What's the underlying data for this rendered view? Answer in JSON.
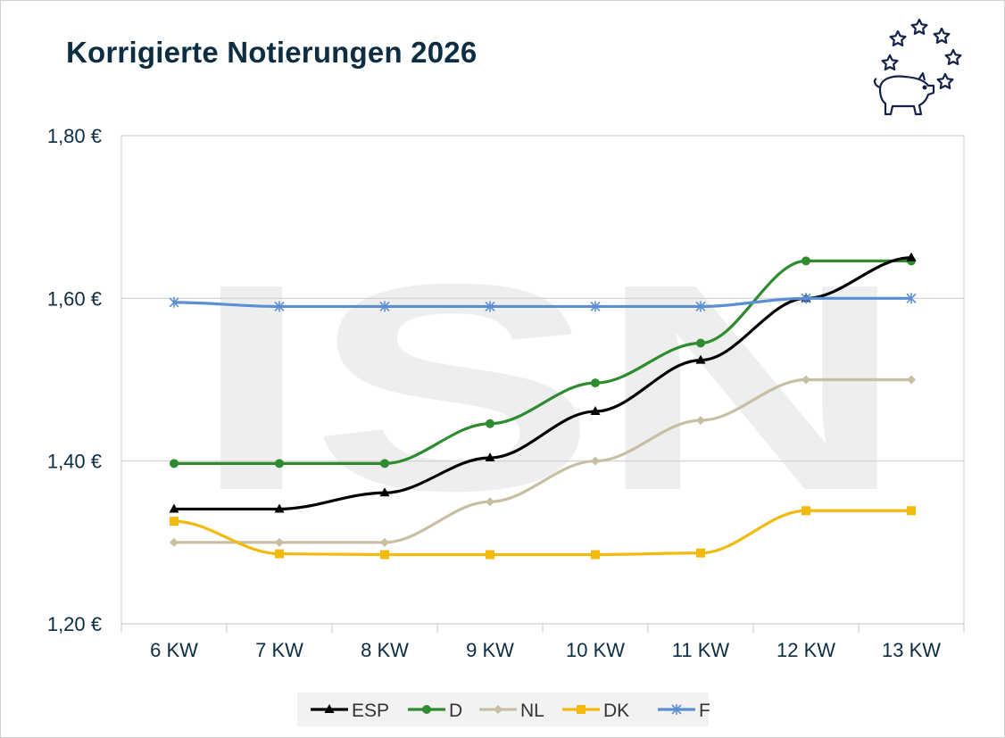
{
  "chart_data": {
    "type": "line",
    "title": "Korrigierte Notierungen 2026",
    "xlabel": "",
    "ylabel": "",
    "categories": [
      "6 KW",
      "7 KW",
      "8 KW",
      "9 KW",
      "10 KW",
      "11 KW",
      "12 KW",
      "13 KW"
    ],
    "ylim": [
      1.2,
      1.8
    ],
    "yticks": [
      1.2,
      1.4,
      1.6,
      1.8
    ],
    "ytick_labels": [
      "1,20 €",
      "1,40 €",
      "1,60 €",
      "1,80 €"
    ],
    "grid": true,
    "legend_position": "bottom",
    "series": [
      {
        "name": "ESP",
        "color": "#000000",
        "marker": "triangle",
        "values": [
          1.341,
          1.341,
          1.361,
          1.404,
          1.461,
          1.524,
          1.6,
          1.65
        ]
      },
      {
        "name": "D",
        "color": "#2e8b2e",
        "marker": "circle",
        "values": [
          1.397,
          1.397,
          1.397,
          1.446,
          1.496,
          1.545,
          1.646,
          1.646
        ]
      },
      {
        "name": "NL",
        "color": "#c8bea2",
        "marker": "diamond",
        "values": [
          1.3,
          1.3,
          1.3,
          1.35,
          1.4,
          1.45,
          1.5,
          1.5
        ]
      },
      {
        "name": "DK",
        "color": "#f2b90f",
        "marker": "square",
        "values": [
          1.326,
          1.286,
          1.285,
          1.285,
          1.285,
          1.287,
          1.339,
          1.339
        ]
      },
      {
        "name": "F",
        "color": "#5b8fd4",
        "marker": "star",
        "values": [
          1.595,
          1.59,
          1.59,
          1.59,
          1.59,
          1.59,
          1.6,
          1.6
        ]
      }
    ]
  },
  "watermark": "ISN",
  "logo": {
    "icon": "pig-with-stars-icon"
  }
}
